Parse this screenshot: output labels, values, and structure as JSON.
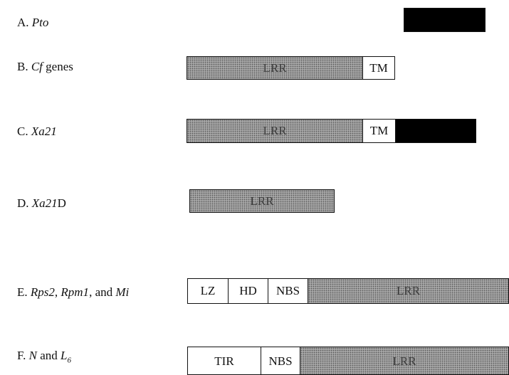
{
  "rows": {
    "a": {
      "letter": "A.",
      "gene": "Pto"
    },
    "b": {
      "letter": "B.",
      "gene": "Cf",
      "suffix": " genes",
      "lrr": "LRR",
      "tm": "TM"
    },
    "c": {
      "letter": "C.",
      "gene": "Xa21",
      "lrr": "LRR",
      "tm": "TM"
    },
    "d": {
      "letter": "D.",
      "gene": "Xa21",
      "suffix": "D",
      "lrr": "LRR"
    },
    "e": {
      "letter": "E.",
      "gene1": "Rps2",
      "sep1": ", ",
      "gene2": "Rpm1",
      "sep2": ", and ",
      "gene3": "Mi",
      "lz": "LZ",
      "hd": "HD",
      "nbs": "NBS",
      "lrr": "LRR"
    },
    "f": {
      "letter": "F.",
      "gene1": "N",
      "sep1": " and ",
      "gene2": "L",
      "sub": "6",
      "tir": "TIR",
      "nbs": "NBS",
      "lrr": "LRR"
    }
  },
  "colors": {
    "lrr_fill": "#9a9a9a",
    "kinase_fill": "#000000",
    "outline": "#111111"
  }
}
